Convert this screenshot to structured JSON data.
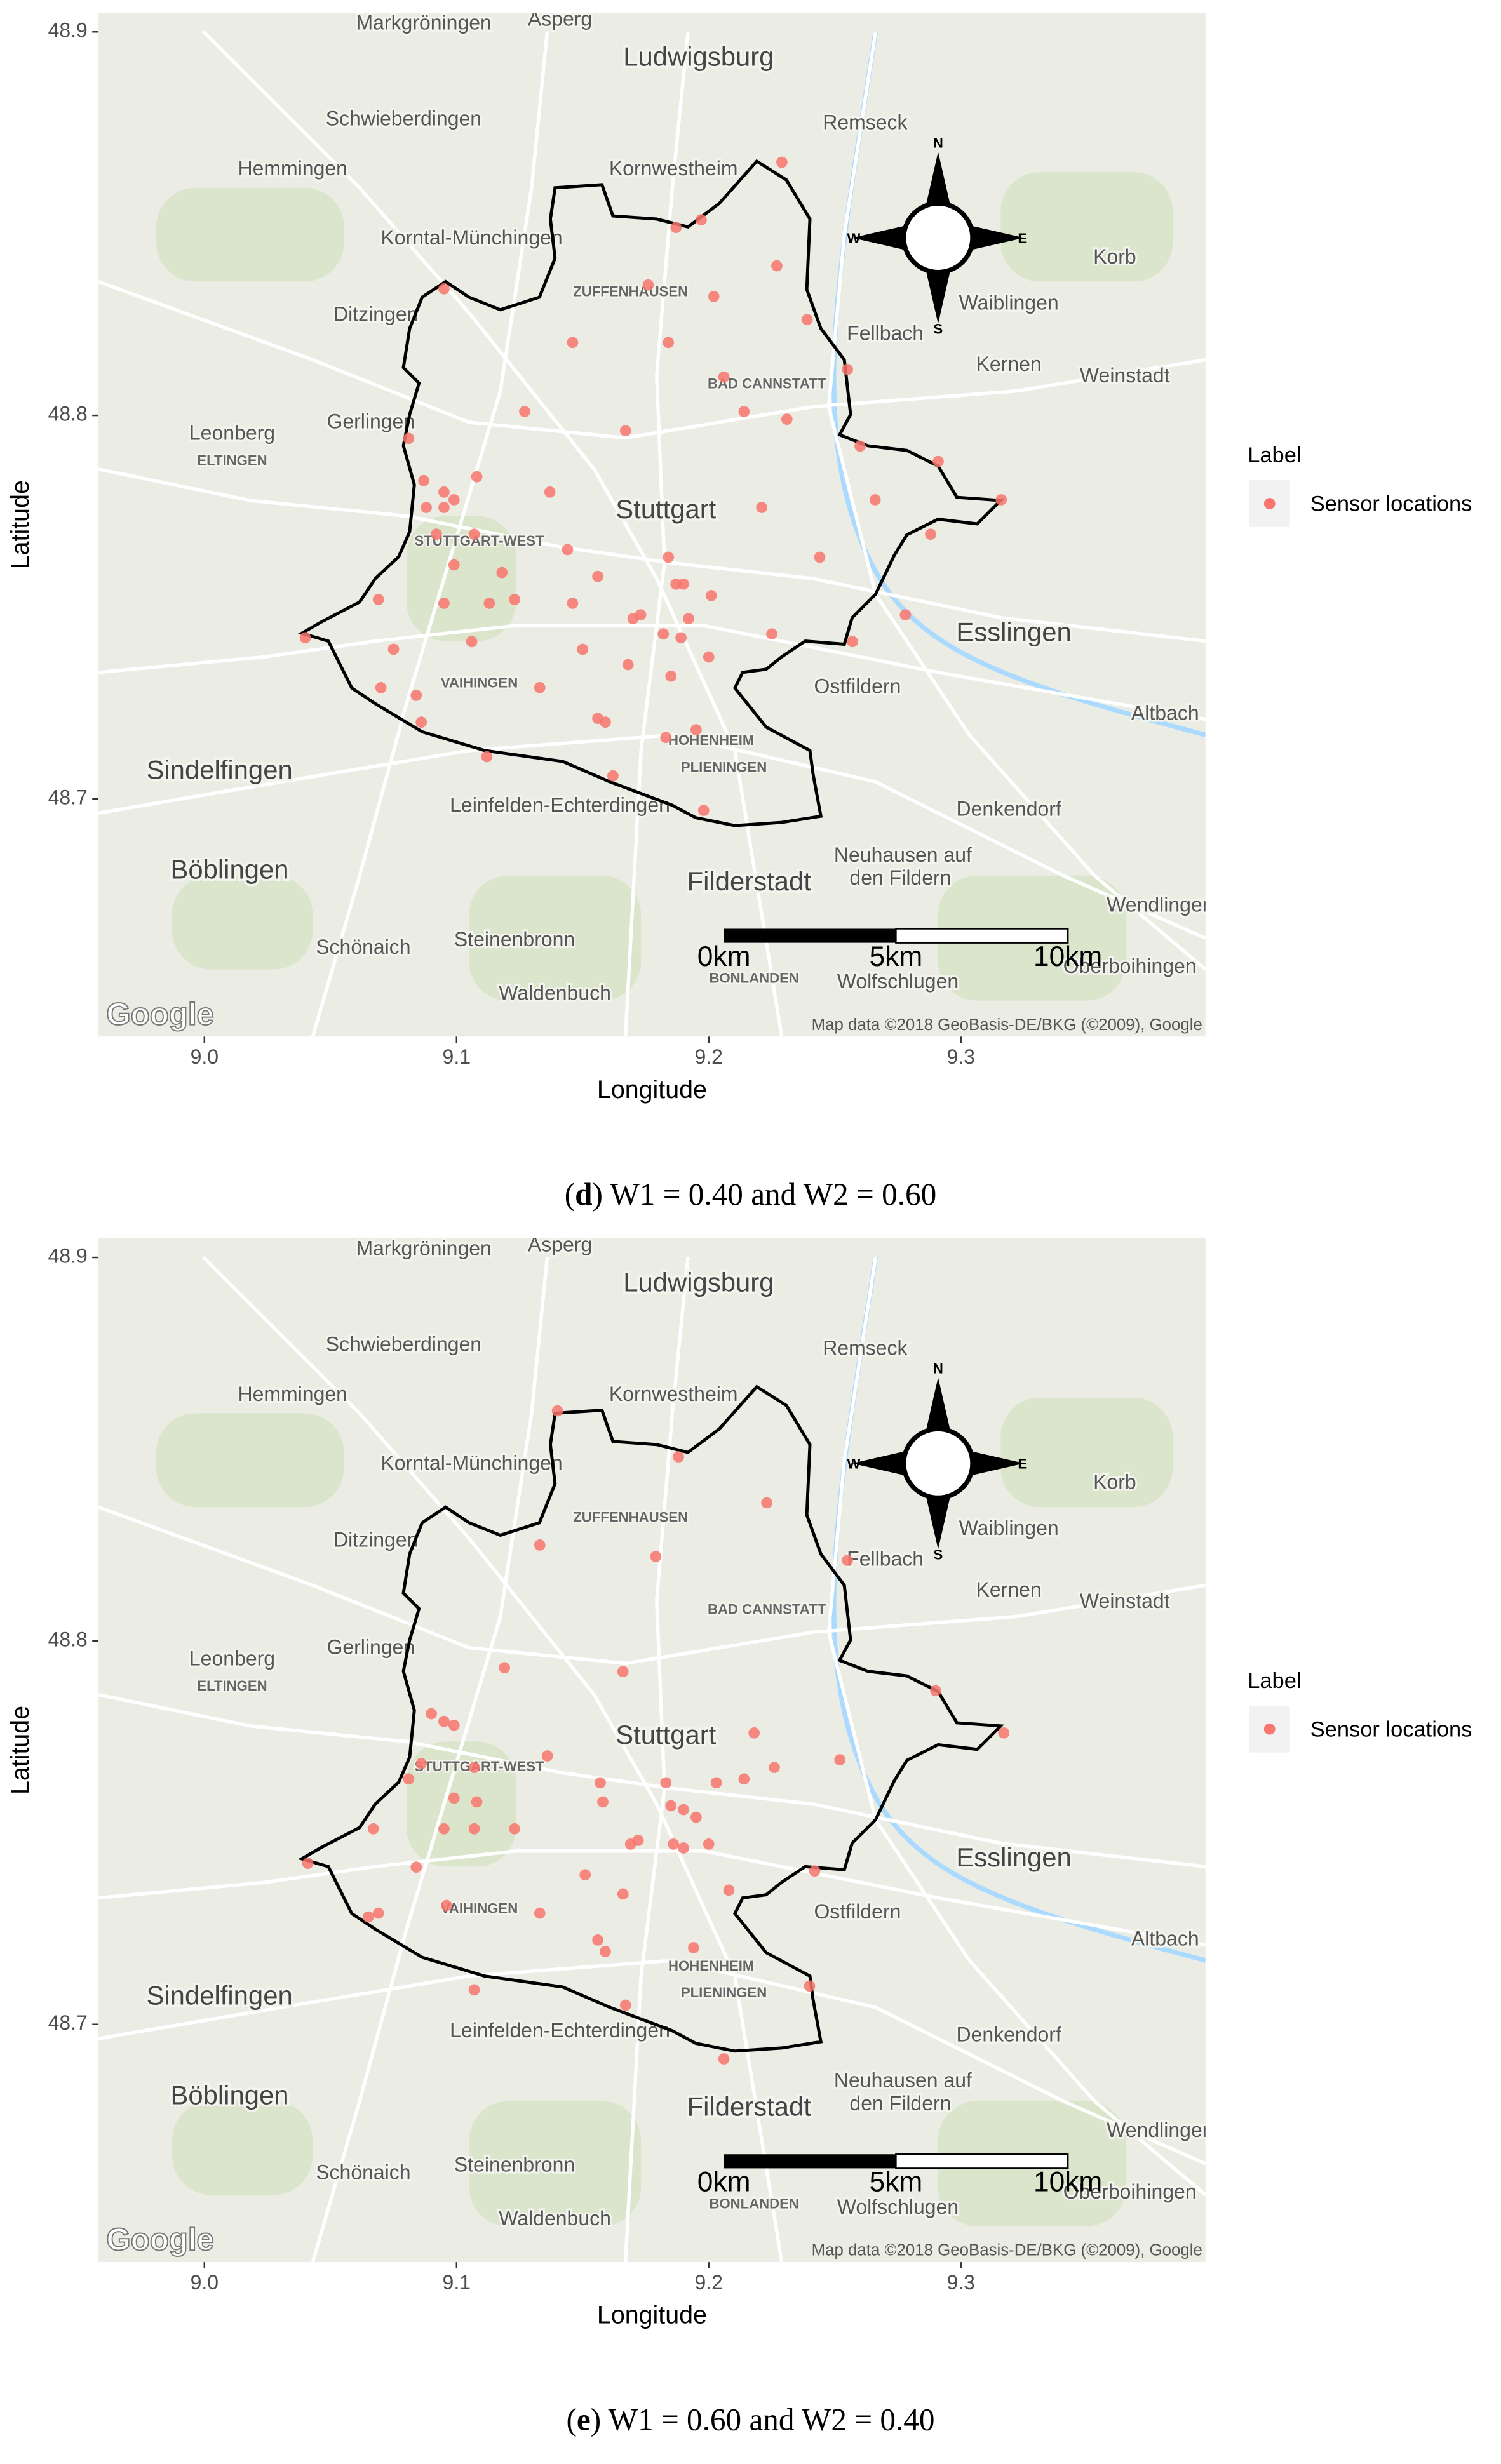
{
  "chart_data": [
    {
      "type": "scatter",
      "x_label": "Longitude",
      "y_label": "Latitude",
      "xlim": [
        8.958,
        9.397
      ],
      "ylim": [
        48.638,
        48.905
      ],
      "xticks": [
        {
          "value": 9,
          "label": "9.0"
        },
        9.1,
        9.2,
        9.3
      ],
      "yticks": [
        48.7,
        48.8,
        48.9
      ],
      "legend_title": "Label",
      "series": [
        {
          "name": "Sensor locations",
          "color": "#f8766d",
          "x": [
            9.229,
            9.197,
            9.187,
            9.176,
            9.202,
            9.227,
            9.095,
            9.146,
            9.184,
            9.239,
            9.255,
            9.206,
            9.127,
            9.167,
            9.231,
            9.26,
            9.291,
            9.316,
            9.081,
            9.087,
            9.095,
            9.099,
            9.095,
            9.088,
            9.108,
            9.137,
            9.107,
            9.099,
            9.092,
            9.118,
            9.123,
            9.113,
            9.106,
            9.095,
            9.069,
            9.04,
            9.075,
            9.07,
            9.084,
            9.086,
            9.112,
            9.133,
            9.144,
            9.156,
            9.146,
            9.15,
            9.17,
            9.173,
            9.184,
            9.187,
            9.19,
            9.182,
            9.189,
            9.201,
            9.192,
            9.2,
            9.185,
            9.168,
            9.156,
            9.159,
            9.183,
            9.195,
            9.225,
            9.221,
            9.244,
            9.257,
            9.266,
            9.288,
            9.278,
            9.198,
            9.162,
            9.214
          ],
          "values": [
            48.866,
            48.851,
            48.849,
            48.834,
            48.831,
            48.839,
            48.833,
            48.819,
            48.819,
            48.825,
            48.812,
            48.81,
            48.801,
            48.796,
            48.799,
            48.792,
            48.788,
            48.778,
            48.794,
            48.783,
            48.78,
            48.778,
            48.776,
            48.776,
            48.784,
            48.78,
            48.769,
            48.761,
            48.769,
            48.759,
            48.752,
            48.751,
            48.741,
            48.751,
            48.752,
            48.742,
            48.739,
            48.729,
            48.727,
            48.72,
            48.711,
            48.729,
            48.765,
            48.758,
            48.751,
            48.739,
            48.747,
            48.748,
            48.763,
            48.756,
            48.756,
            48.743,
            48.742,
            48.753,
            48.747,
            48.737,
            48.732,
            48.735,
            48.721,
            48.72,
            48.716,
            48.718,
            48.743,
            48.776,
            48.763,
            48.741,
            48.778,
            48.769,
            48.748,
            48.697,
            48.706,
            48.801
          ]
        }
      ],
      "caption": {
        "prefix": "(",
        "label": "d",
        "text": ") W1 = 0.40 and W2 = 0.60"
      }
    },
    {
      "type": "scatter",
      "x_label": "Longitude",
      "y_label": "Latitude",
      "xlim": [
        8.958,
        9.397
      ],
      "ylim": [
        48.638,
        48.905
      ],
      "xticks": [
        {
          "value": 9,
          "label": "9.0"
        },
        9.1,
        9.2,
        9.3
      ],
      "yticks": [
        48.7,
        48.8,
        48.9
      ],
      "legend_title": "Label",
      "series": [
        {
          "name": "Sensor locations",
          "color": "#f8766d",
          "x": [
            9.14,
            9.188,
            9.223,
            9.133,
            9.179,
            9.255,
            9.119,
            9.166,
            9.095,
            9.099,
            9.09,
            9.086,
            9.107,
            9.136,
            9.108,
            9.099,
            9.081,
            9.067,
            9.095,
            9.107,
            9.123,
            9.084,
            9.041,
            9.069,
            9.065,
            9.096,
            9.133,
            9.107,
            9.167,
            9.206,
            9.157,
            9.158,
            9.183,
            9.185,
            9.19,
            9.203,
            9.214,
            9.226,
            9.218,
            9.195,
            9.169,
            9.172,
            9.186,
            9.2,
            9.19,
            9.151,
            9.166,
            9.208,
            9.156,
            9.159,
            9.194,
            9.24,
            9.242,
            9.252,
            9.29,
            9.317
          ],
          "values": [
            48.86,
            48.848,
            48.836,
            48.825,
            48.822,
            48.821,
            48.793,
            48.792,
            48.779,
            48.778,
            48.781,
            48.768,
            48.767,
            48.77,
            48.758,
            48.759,
            48.764,
            48.751,
            48.751,
            48.751,
            48.751,
            48.741,
            48.742,
            48.729,
            48.728,
            48.731,
            48.729,
            48.709,
            48.705,
            48.691,
            48.763,
            48.758,
            48.763,
            48.757,
            48.756,
            48.763,
            48.764,
            48.767,
            48.776,
            48.754,
            48.747,
            48.748,
            48.747,
            48.747,
            48.746,
            48.739,
            48.734,
            48.735,
            48.722,
            48.719,
            48.72,
            48.71,
            48.74,
            48.769,
            48.787,
            48.776
          ]
        }
      ],
      "caption": {
        "prefix": "(",
        "label": "e",
        "text": ") W1 = 0.60 and W2 = 0.40"
      }
    }
  ],
  "map": {
    "labels": [
      {
        "text": "Ludwigsburg",
        "x": 9.196,
        "y": 48.893,
        "kind": "city"
      },
      {
        "text": "Markgröningen",
        "x": 9.087,
        "y": 48.902,
        "kind": "town"
      },
      {
        "text": "Asperg",
        "x": 9.141,
        "y": 48.903,
        "kind": "town"
      },
      {
        "text": "Remseck",
        "x": 9.262,
        "y": 48.876,
        "kind": "town"
      },
      {
        "text": "Schwieberdingen",
        "x": 9.079,
        "y": 48.877,
        "kind": "town"
      },
      {
        "text": "Hemmingen",
        "x": 9.035,
        "y": 48.864,
        "kind": "town"
      },
      {
        "text": "Kornwestheim",
        "x": 9.186,
        "y": 48.864,
        "kind": "town"
      },
      {
        "text": "Korntal-Münchingen",
        "x": 9.106,
        "y": 48.846,
        "kind": "town"
      },
      {
        "text": "ZUFFENHAUSEN",
        "x": 9.169,
        "y": 48.832,
        "kind": "district"
      },
      {
        "text": "Ditzingen",
        "x": 9.068,
        "y": 48.826,
        "kind": "town"
      },
      {
        "text": "Waiblingen",
        "x": 9.319,
        "y": 48.829,
        "kind": "town"
      },
      {
        "text": "Korb",
        "x": 9.361,
        "y": 48.841,
        "kind": "town"
      },
      {
        "text": "Fellbach",
        "x": 9.27,
        "y": 48.821,
        "kind": "town"
      },
      {
        "text": "BAD CANNSTATT",
        "x": 9.223,
        "y": 48.808,
        "kind": "district"
      },
      {
        "text": "Kernen",
        "x": 9.319,
        "y": 48.813,
        "kind": "town"
      },
      {
        "text": "Weinstadt",
        "x": 9.365,
        "y": 48.81,
        "kind": "town"
      },
      {
        "text": "Leonberg",
        "x": 9.011,
        "y": 48.795,
        "kind": "town"
      },
      {
        "text": "Gerlingen",
        "x": 9.066,
        "y": 48.798,
        "kind": "town"
      },
      {
        "text": "ELTINGEN",
        "x": 9.011,
        "y": 48.788,
        "kind": "district"
      },
      {
        "text": "Stuttgart",
        "x": 9.183,
        "y": 48.775,
        "kind": "city"
      },
      {
        "text": "STUTTGART-WEST",
        "x": 9.109,
        "y": 48.767,
        "kind": "district"
      },
      {
        "text": "Esslingen",
        "x": 9.321,
        "y": 48.743,
        "kind": "city"
      },
      {
        "text": "Ostfildern",
        "x": 9.259,
        "y": 48.729,
        "kind": "town"
      },
      {
        "text": "VAIHINGEN",
        "x": 9.109,
        "y": 48.73,
        "kind": "district"
      },
      {
        "text": "HOHENHEIM",
        "x": 9.201,
        "y": 48.715,
        "kind": "district"
      },
      {
        "text": "PLIENINGEN",
        "x": 9.206,
        "y": 48.708,
        "kind": "district"
      },
      {
        "text": "Altbach",
        "x": 9.381,
        "y": 48.722,
        "kind": "town"
      },
      {
        "text": "Sindelfingen",
        "x": 9.006,
        "y": 48.707,
        "kind": "city"
      },
      {
        "text": "Leinfelden-Echterdingen",
        "x": 9.141,
        "y": 48.698,
        "kind": "town"
      },
      {
        "text": "Denkendorf",
        "x": 9.319,
        "y": 48.697,
        "kind": "town"
      },
      {
        "text": "Böblingen",
        "x": 9.01,
        "y": 48.681,
        "kind": "city"
      },
      {
        "text": "Filderstadt",
        "x": 9.216,
        "y": 48.678,
        "kind": "city"
      },
      {
        "text": "Neuhausen auf",
        "x": 9.277,
        "y": 48.685,
        "kind": "town"
      },
      {
        "text": "den Fildern",
        "x": 9.276,
        "y": 48.679,
        "kind": "town"
      },
      {
        "text": "Wendlingen",
        "x": 9.379,
        "y": 48.672,
        "kind": "town"
      },
      {
        "text": "Schönaich",
        "x": 9.063,
        "y": 48.661,
        "kind": "town"
      },
      {
        "text": "Steinenbronn",
        "x": 9.123,
        "y": 48.663,
        "kind": "town"
      },
      {
        "text": "BONLANDEN",
        "x": 9.218,
        "y": 48.653,
        "kind": "district"
      },
      {
        "text": "Wolfschlugen",
        "x": 9.275,
        "y": 48.652,
        "kind": "town"
      },
      {
        "text": "Oberboihingen",
        "x": 9.367,
        "y": 48.656,
        "kind": "town"
      },
      {
        "text": "Waldenbuch",
        "x": 9.139,
        "y": 48.649,
        "kind": "town"
      }
    ],
    "compass": [
      "N",
      "E",
      "S",
      "W"
    ],
    "scale_bar": [
      "0km",
      "5km",
      "10km"
    ],
    "logo": "Google",
    "attribution": "Map data ©2018 GeoBasis-DE/BKG (©2009), Google"
  }
}
